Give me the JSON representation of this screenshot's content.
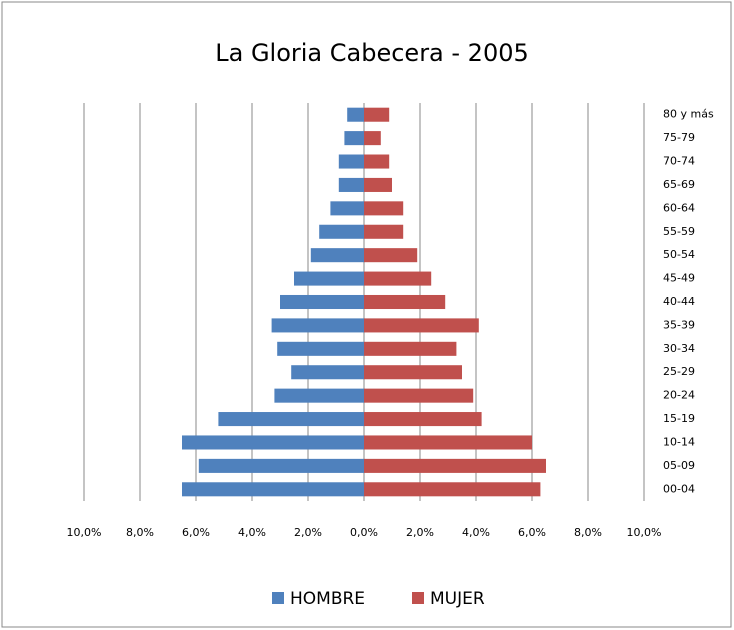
{
  "chart_data": {
    "type": "bar",
    "orientation": "horizontal",
    "title": "La Gloria Cabecera - 2005",
    "categories": [
      "00-04",
      "05-09",
      "10-14",
      "15-19",
      "20-24",
      "25-29",
      "30-34",
      "35-39",
      "40-44",
      "45-49",
      "50-54",
      "55-59",
      "60-64",
      "65-69",
      "70-74",
      "75-79",
      "80 y más"
    ],
    "series": [
      {
        "name": "HOMBRE",
        "color": "#4f81bd",
        "values": [
          -6.5,
          -5.9,
          -6.5,
          -5.2,
          -3.2,
          -2.6,
          -3.1,
          -3.3,
          -3.0,
          -2.5,
          -1.9,
          -1.6,
          -1.2,
          -0.9,
          -0.9,
          -0.7,
          -0.6
        ]
      },
      {
        "name": "MUJER",
        "color": "#c0504d",
        "values": [
          6.3,
          6.5,
          6.0,
          4.2,
          3.9,
          3.5,
          3.3,
          4.1,
          2.9,
          2.4,
          1.9,
          1.4,
          1.4,
          1.0,
          0.9,
          0.6,
          0.9
        ]
      }
    ],
    "xlim": [
      -10,
      10
    ],
    "xticks": [
      {
        "value": -10,
        "label": "10,0%"
      },
      {
        "value": -8,
        "label": "8,0%"
      },
      {
        "value": -6,
        "label": "6,0%"
      },
      {
        "value": -4,
        "label": "4,0%"
      },
      {
        "value": -2,
        "label": "2,0%"
      },
      {
        "value": 0,
        "label": "0,0%"
      },
      {
        "value": 2,
        "label": "2,0%"
      },
      {
        "value": 4,
        "label": "4,0%"
      },
      {
        "value": 6,
        "label": "6,0%"
      },
      {
        "value": 8,
        "label": "8,0%"
      },
      {
        "value": 10,
        "label": "10,0%"
      }
    ],
    "grid": true,
    "legend": "bottom"
  }
}
